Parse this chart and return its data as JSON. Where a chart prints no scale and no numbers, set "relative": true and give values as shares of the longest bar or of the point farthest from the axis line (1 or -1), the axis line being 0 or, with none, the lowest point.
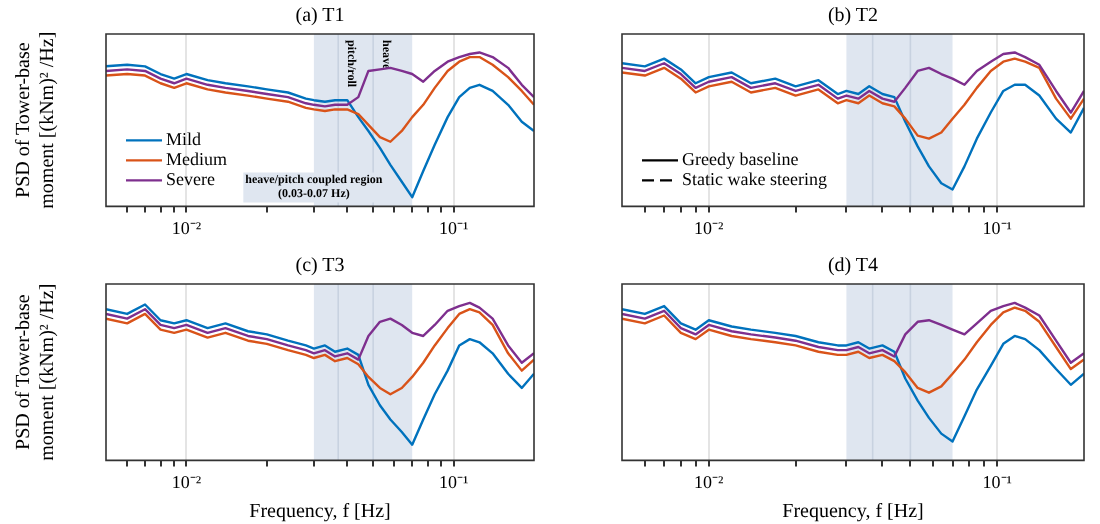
{
  "chart_data": [
    {
      "type": "line",
      "title": "(a) T1",
      "ylabel": "PSD of Tower-base\nmoment [(kNm)² /Hz]",
      "relative": true,
      "log": "x",
      "grid": true,
      "legend": "bottom left",
      "xlim": [
        0.005,
        0.2
      ],
      "xticks": [
        {
          "value": 0.006,
          "label": null
        },
        {
          "value": 0.007,
          "label": null
        },
        {
          "value": 0.008,
          "label": null
        },
        {
          "value": 0.009,
          "label": null
        },
        {
          "value": 0.01,
          "label": "10⁻²"
        },
        {
          "value": 0.02,
          "label": null
        },
        {
          "value": 0.03,
          "label": null
        },
        {
          "value": 0.04,
          "label": null
        },
        {
          "value": 0.05,
          "label": null
        },
        {
          "value": 0.06,
          "label": null
        },
        {
          "value": 0.07,
          "label": null
        },
        {
          "value": 0.08,
          "label": null
        },
        {
          "value": 0.09,
          "label": null
        },
        {
          "value": 0.1,
          "label": "10⁻¹"
        }
      ],
      "x": [
        0.005,
        0.006,
        0.007,
        0.008,
        0.009,
        0.01,
        0.012,
        0.014,
        0.017,
        0.02,
        0.024,
        0.028,
        0.03,
        0.033,
        0.036,
        0.04,
        0.044,
        0.048,
        0.053,
        0.058,
        0.064,
        0.07,
        0.077,
        0.085,
        0.095,
        0.105,
        0.115,
        0.125,
        0.14,
        0.16,
        0.18,
        0.2
      ],
      "bands": [
        {
          "axis": "x",
          "from": 0.03,
          "to": 0.07,
          "label": "heave/pitch coupled region\n(0.03-0.07 Hz)",
          "color": "#dfe6f0"
        }
      ],
      "ref_lines": [
        {
          "axis": "x",
          "value": 0.037,
          "label": "pitch/roll",
          "color": "#c8d2e0"
        },
        {
          "axis": "x",
          "value": 0.05,
          "label": "heave",
          "color": "#c8d2e0"
        }
      ],
      "series": [
        {
          "name": "Mild",
          "color": "#0072bd",
          "values": [
            0.91,
            0.92,
            0.91,
            0.86,
            0.83,
            0.86,
            0.82,
            0.8,
            0.78,
            0.76,
            0.74,
            0.7,
            0.69,
            0.68,
            0.69,
            0.69,
            0.58,
            0.49,
            0.38,
            0.27,
            0.16,
            0.06,
            0.23,
            0.4,
            0.58,
            0.71,
            0.77,
            0.79,
            0.75,
            0.66,
            0.55,
            0.49
          ]
        },
        {
          "name": "Medium",
          "color": "#d95319",
          "values": [
            0.85,
            0.86,
            0.85,
            0.8,
            0.77,
            0.8,
            0.76,
            0.74,
            0.72,
            0.7,
            0.68,
            0.64,
            0.63,
            0.62,
            0.63,
            0.63,
            0.6,
            0.53,
            0.45,
            0.42,
            0.49,
            0.58,
            0.66,
            0.77,
            0.88,
            0.94,
            0.97,
            0.97,
            0.92,
            0.84,
            0.75,
            0.66
          ]
        },
        {
          "name": "Severe",
          "color": "#7e2f8e",
          "values": [
            0.88,
            0.89,
            0.88,
            0.83,
            0.8,
            0.83,
            0.79,
            0.77,
            0.75,
            0.73,
            0.71,
            0.67,
            0.66,
            0.65,
            0.66,
            0.66,
            0.71,
            0.88,
            0.89,
            0.9,
            0.88,
            0.86,
            0.81,
            0.88,
            0.94,
            0.97,
            0.99,
            1,
            0.97,
            0.9,
            0.79,
            0.71
          ]
        }
      ]
    },
    {
      "type": "line",
      "title": "(b) T2",
      "relative": true,
      "log": "x",
      "grid": true,
      "legend": "bottom left",
      "xlim": [
        0.005,
        0.2
      ],
      "xticks": [
        {
          "value": 0.006,
          "label": null
        },
        {
          "value": 0.007,
          "label": null
        },
        {
          "value": 0.008,
          "label": null
        },
        {
          "value": 0.009,
          "label": null
        },
        {
          "value": 0.01,
          "label": "10⁻²"
        },
        {
          "value": 0.02,
          "label": null
        },
        {
          "value": 0.03,
          "label": null
        },
        {
          "value": 0.04,
          "label": null
        },
        {
          "value": 0.05,
          "label": null
        },
        {
          "value": 0.06,
          "label": null
        },
        {
          "value": 0.07,
          "label": null
        },
        {
          "value": 0.08,
          "label": null
        },
        {
          "value": 0.09,
          "label": null
        },
        {
          "value": 0.1,
          "label": "10⁻¹"
        }
      ],
      "x": [
        0.005,
        0.006,
        0.007,
        0.008,
        0.009,
        0.01,
        0.012,
        0.014,
        0.017,
        0.02,
        0.024,
        0.028,
        0.03,
        0.033,
        0.036,
        0.04,
        0.044,
        0.048,
        0.053,
        0.058,
        0.064,
        0.07,
        0.077,
        0.085,
        0.095,
        0.105,
        0.115,
        0.125,
        0.14,
        0.16,
        0.18,
        0.2
      ],
      "bands": [
        {
          "axis": "x",
          "from": 0.03,
          "to": 0.07,
          "color": "#dfe6f0"
        }
      ],
      "ref_lines": [
        {
          "axis": "x",
          "value": 0.037,
          "color": "#c8d2e0"
        },
        {
          "axis": "x",
          "value": 0.05,
          "color": "#c8d2e0"
        }
      ],
      "series": [
        {
          "color": "#0072bd",
          "values": [
            0.93,
            0.91,
            0.96,
            0.89,
            0.8,
            0.84,
            0.87,
            0.8,
            0.83,
            0.78,
            0.82,
            0.73,
            0.75,
            0.73,
            0.78,
            0.73,
            0.71,
            0.55,
            0.39,
            0.26,
            0.15,
            0.11,
            0.26,
            0.44,
            0.61,
            0.75,
            0.79,
            0.79,
            0.72,
            0.57,
            0.48,
            0.64
          ]
        },
        {
          "color": "#d95319",
          "values": [
            0.87,
            0.85,
            0.9,
            0.83,
            0.74,
            0.78,
            0.81,
            0.74,
            0.77,
            0.72,
            0.76,
            0.67,
            0.69,
            0.67,
            0.72,
            0.67,
            0.65,
            0.57,
            0.46,
            0.44,
            0.48,
            0.57,
            0.66,
            0.77,
            0.88,
            0.94,
            0.96,
            0.94,
            0.9,
            0.7,
            0.57,
            0.7
          ]
        },
        {
          "color": "#7e2f8e",
          "values": [
            0.9,
            0.88,
            0.93,
            0.86,
            0.77,
            0.81,
            0.84,
            0.77,
            0.8,
            0.75,
            0.79,
            0.7,
            0.72,
            0.7,
            0.75,
            0.7,
            0.68,
            0.77,
            0.88,
            0.9,
            0.86,
            0.83,
            0.79,
            0.88,
            0.94,
            0.99,
            1,
            0.97,
            0.92,
            0.75,
            0.61,
            0.75
          ]
        },
        {
          "name": "Greedy baseline",
          "color": "#000000",
          "line_style": "solid",
          "values": [
            null,
            null,
            null,
            null,
            null,
            null,
            null,
            null,
            null,
            null,
            null,
            null,
            null,
            null,
            null,
            null,
            null,
            null,
            null,
            null,
            null,
            null,
            null,
            null,
            null,
            null,
            null,
            null,
            null,
            null,
            null,
            null
          ]
        },
        {
          "name": "Static wake steering",
          "color": "#000000",
          "line_style": "dashed",
          "values": [
            null,
            null,
            null,
            null,
            null,
            null,
            null,
            null,
            null,
            null,
            null,
            null,
            null,
            null,
            null,
            null,
            null,
            null,
            null,
            null,
            null,
            null,
            null,
            null,
            null,
            null,
            null,
            null,
            null,
            null,
            null,
            null
          ]
        }
      ]
    },
    {
      "type": "line",
      "title": "(c) T3",
      "ylabel": "PSD of Tower-base\nmoment [(kNm)² /Hz]",
      "xlabel": "Frequency, f [Hz]",
      "relative": true,
      "log": "x",
      "grid": true,
      "xlim": [
        0.005,
        0.2
      ],
      "xticks": [
        {
          "value": 0.006,
          "label": null
        },
        {
          "value": 0.007,
          "label": null
        },
        {
          "value": 0.008,
          "label": null
        },
        {
          "value": 0.009,
          "label": null
        },
        {
          "value": 0.01,
          "label": "10⁻²"
        },
        {
          "value": 0.02,
          "label": null
        },
        {
          "value": 0.03,
          "label": null
        },
        {
          "value": 0.04,
          "label": null
        },
        {
          "value": 0.05,
          "label": null
        },
        {
          "value": 0.06,
          "label": null
        },
        {
          "value": 0.07,
          "label": null
        },
        {
          "value": 0.08,
          "label": null
        },
        {
          "value": 0.09,
          "label": null
        },
        {
          "value": 0.1,
          "label": "10⁻¹"
        }
      ],
      "x": [
        0.005,
        0.006,
        0.007,
        0.008,
        0.009,
        0.01,
        0.012,
        0.014,
        0.017,
        0.02,
        0.024,
        0.028,
        0.03,
        0.033,
        0.036,
        0.04,
        0.044,
        0.048,
        0.053,
        0.058,
        0.064,
        0.07,
        0.077,
        0.085,
        0.095,
        0.105,
        0.115,
        0.125,
        0.14,
        0.16,
        0.18,
        0.2
      ],
      "bands": [
        {
          "axis": "x",
          "from": 0.03,
          "to": 0.07,
          "color": "#dfe6f0"
        }
      ],
      "ref_lines": [
        {
          "axis": "x",
          "value": 0.037,
          "color": "#c8d2e0"
        },
        {
          "axis": "x",
          "value": 0.05,
          "color": "#c8d2e0"
        }
      ],
      "series": [
        {
          "color": "#0072bd",
          "values": [
            0.96,
            0.93,
            0.99,
            0.89,
            0.87,
            0.89,
            0.84,
            0.87,
            0.82,
            0.8,
            0.76,
            0.73,
            0.71,
            0.73,
            0.69,
            0.71,
            0.67,
            0.48,
            0.35,
            0.26,
            0.18,
            0.1,
            0.26,
            0.42,
            0.57,
            0.73,
            0.77,
            0.75,
            0.68,
            0.55,
            0.46,
            0.55
          ]
        },
        {
          "color": "#d95319",
          "values": [
            0.9,
            0.87,
            0.93,
            0.83,
            0.81,
            0.83,
            0.78,
            0.81,
            0.76,
            0.74,
            0.7,
            0.67,
            0.65,
            0.67,
            0.63,
            0.65,
            0.61,
            0.53,
            0.46,
            0.42,
            0.46,
            0.53,
            0.62,
            0.73,
            0.84,
            0.93,
            0.96,
            0.94,
            0.86,
            0.68,
            0.57,
            0.64
          ]
        },
        {
          "color": "#7e2f8e",
          "values": [
            0.93,
            0.9,
            0.96,
            0.86,
            0.84,
            0.86,
            0.81,
            0.84,
            0.79,
            0.77,
            0.73,
            0.7,
            0.68,
            0.7,
            0.66,
            0.68,
            0.64,
            0.79,
            0.88,
            0.9,
            0.86,
            0.81,
            0.79,
            0.86,
            0.95,
            0.98,
            1,
            0.97,
            0.9,
            0.73,
            0.62,
            0.68
          ]
        }
      ]
    },
    {
      "type": "line",
      "title": "(d) T4",
      "xlabel": "Frequency, f [Hz]",
      "relative": true,
      "log": "x",
      "grid": true,
      "xlim": [
        0.005,
        0.2
      ],
      "xticks": [
        {
          "value": 0.006,
          "label": null
        },
        {
          "value": 0.007,
          "label": null
        },
        {
          "value": 0.008,
          "label": null
        },
        {
          "value": 0.009,
          "label": null
        },
        {
          "value": 0.01,
          "label": "10⁻²"
        },
        {
          "value": 0.02,
          "label": null
        },
        {
          "value": 0.03,
          "label": null
        },
        {
          "value": 0.04,
          "label": null
        },
        {
          "value": 0.05,
          "label": null
        },
        {
          "value": 0.06,
          "label": null
        },
        {
          "value": 0.07,
          "label": null
        },
        {
          "value": 0.08,
          "label": null
        },
        {
          "value": 0.09,
          "label": null
        },
        {
          "value": 0.1,
          "label": "10⁻¹"
        }
      ],
      "x": [
        0.005,
        0.006,
        0.007,
        0.008,
        0.009,
        0.01,
        0.012,
        0.014,
        0.017,
        0.02,
        0.024,
        0.028,
        0.03,
        0.033,
        0.036,
        0.04,
        0.044,
        0.048,
        0.053,
        0.058,
        0.064,
        0.07,
        0.077,
        0.085,
        0.095,
        0.105,
        0.115,
        0.125,
        0.14,
        0.16,
        0.18,
        0.2
      ],
      "bands": [
        {
          "axis": "x",
          "from": 0.03,
          "to": 0.07,
          "color": "#dfe6f0"
        }
      ],
      "ref_lines": [
        {
          "axis": "x",
          "value": 0.037,
          "color": "#c8d2e0"
        },
        {
          "axis": "x",
          "value": 0.05,
          "color": "#c8d2e0"
        }
      ],
      "series": [
        {
          "color": "#0072bd",
          "values": [
            0.96,
            0.93,
            0.98,
            0.87,
            0.83,
            0.89,
            0.85,
            0.83,
            0.81,
            0.79,
            0.75,
            0.73,
            0.73,
            0.75,
            0.71,
            0.73,
            0.69,
            0.52,
            0.38,
            0.27,
            0.17,
            0.12,
            0.28,
            0.45,
            0.6,
            0.74,
            0.79,
            0.77,
            0.7,
            0.58,
            0.48,
            0.55
          ]
        },
        {
          "color": "#d95319",
          "values": [
            0.9,
            0.87,
            0.92,
            0.81,
            0.77,
            0.83,
            0.79,
            0.77,
            0.75,
            0.73,
            0.69,
            0.67,
            0.67,
            0.69,
            0.65,
            0.67,
            0.63,
            0.56,
            0.46,
            0.43,
            0.47,
            0.55,
            0.64,
            0.75,
            0.86,
            0.94,
            0.97,
            0.95,
            0.88,
            0.72,
            0.58,
            0.64
          ]
        },
        {
          "color": "#7e2f8e",
          "values": [
            0.93,
            0.9,
            0.95,
            0.84,
            0.8,
            0.86,
            0.82,
            0.8,
            0.78,
            0.76,
            0.72,
            0.7,
            0.7,
            0.72,
            0.68,
            0.7,
            0.66,
            0.8,
            0.88,
            0.89,
            0.86,
            0.83,
            0.8,
            0.87,
            0.95,
            0.98,
            1,
            0.97,
            0.92,
            0.76,
            0.62,
            0.68
          ]
        }
      ]
    }
  ]
}
